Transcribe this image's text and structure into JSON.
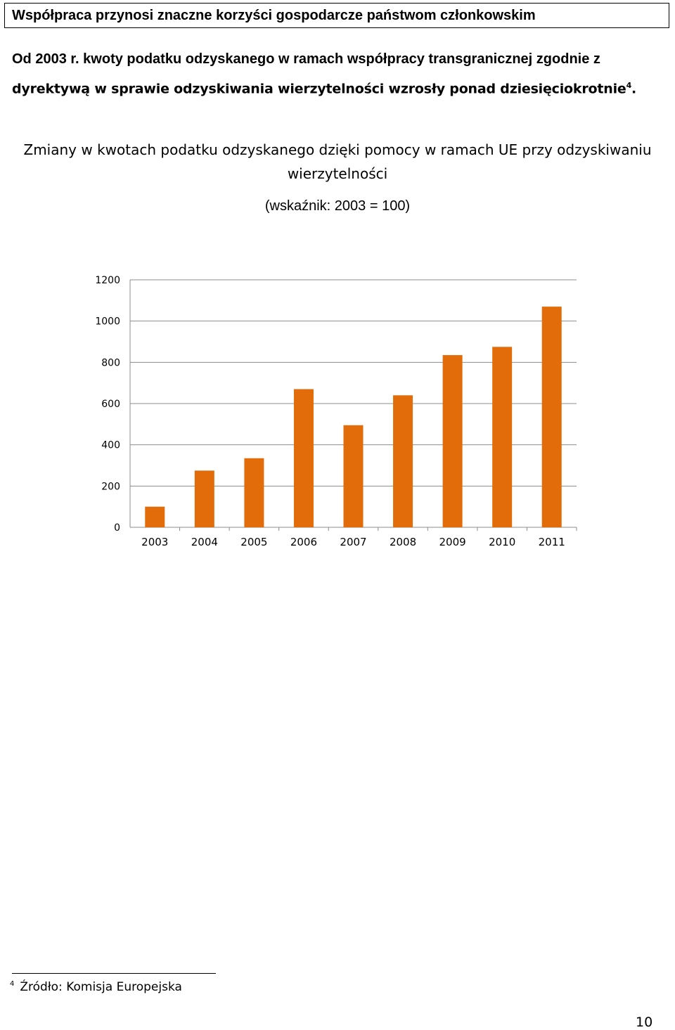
{
  "header": {
    "title": "Współpraca przynosi znaczne korzyści gospodarcze państwom członkowskim"
  },
  "intro": {
    "line1": "Od 2003 r. kwoty podatku odzyskanego w ramach współpracy transgranicznej zgodnie z",
    "line2": "dyrektywą w sprawie odzyskiwania wierzytelności wzrosły ponad dziesięciokrotnie",
    "footnote_ref": "4",
    "line2_end": "."
  },
  "chart_heading": {
    "line1": "Zmiany w kwotach podatku odzyskanego dzięki pomocy w ramach UE przy odzyskiwaniu",
    "line2": "wierzytelności",
    "subtitle": "(wskaźnik: 2003 = 100)"
  },
  "chart_data": {
    "type": "bar",
    "categories": [
      "2003",
      "2004",
      "2005",
      "2006",
      "2007",
      "2008",
      "2009",
      "2010",
      "2011"
    ],
    "values": [
      100,
      275,
      335,
      670,
      495,
      640,
      835,
      875,
      1070
    ],
    "ylim": [
      0,
      1200
    ],
    "yticks": [
      0,
      200,
      400,
      600,
      800,
      1000,
      1200
    ],
    "title": "",
    "xlabel": "",
    "ylabel": "",
    "grid": true,
    "bar_color": "#E36C0A"
  },
  "footnote": {
    "number": "4",
    "text": "Źródło: Komisja Europejska"
  },
  "page_number": "10"
}
